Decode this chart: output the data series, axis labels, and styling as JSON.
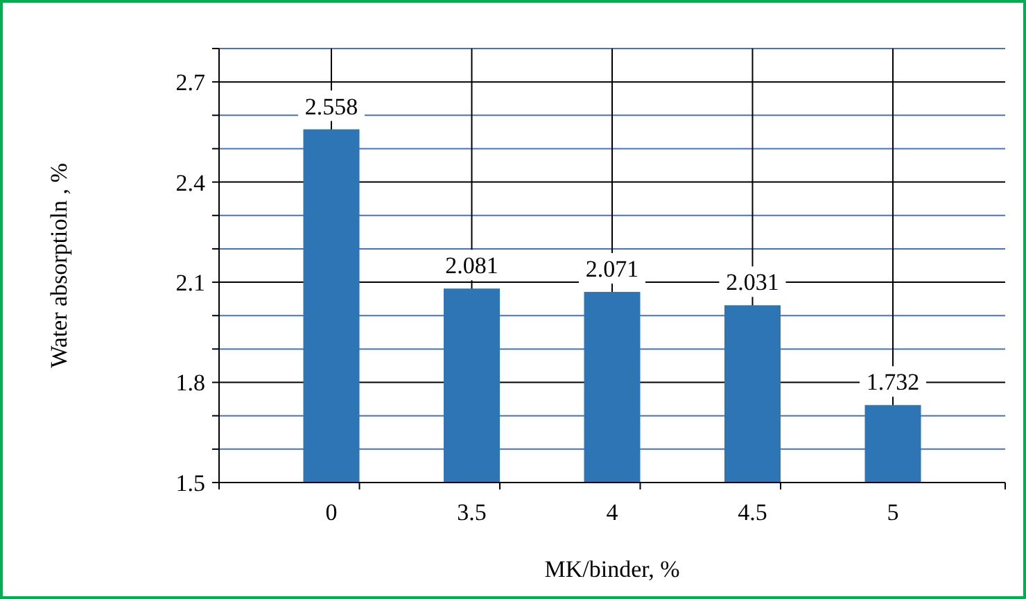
{
  "chart_data": {
    "type": "bar",
    "xlabel": "MK/binder, %",
    "ylabel": "Water absorptioln , %",
    "categories": [
      "0",
      "3.5",
      "4",
      "4.5",
      "5"
    ],
    "values": [
      2.558,
      2.081,
      2.071,
      2.031,
      1.732
    ],
    "color": "#2e75b6",
    "data_labels": true,
    "grid": true,
    "ylim": [
      1.5,
      2.8
    ],
    "yticks": [
      1.5,
      {
        "value": 1.6,
        "label": null
      },
      {
        "value": 1.7,
        "label": null
      },
      1.8,
      {
        "value": 1.9,
        "label": null
      },
      {
        "value": 2.0,
        "label": null
      },
      2.1,
      {
        "value": 2.2,
        "label": null
      },
      {
        "value": 2.3,
        "label": null
      },
      2.4,
      {
        "value": 2.5,
        "label": null
      },
      {
        "value": 2.6,
        "label": null
      },
      2.7,
      {
        "value": 2.8,
        "label": null
      }
    ]
  }
}
